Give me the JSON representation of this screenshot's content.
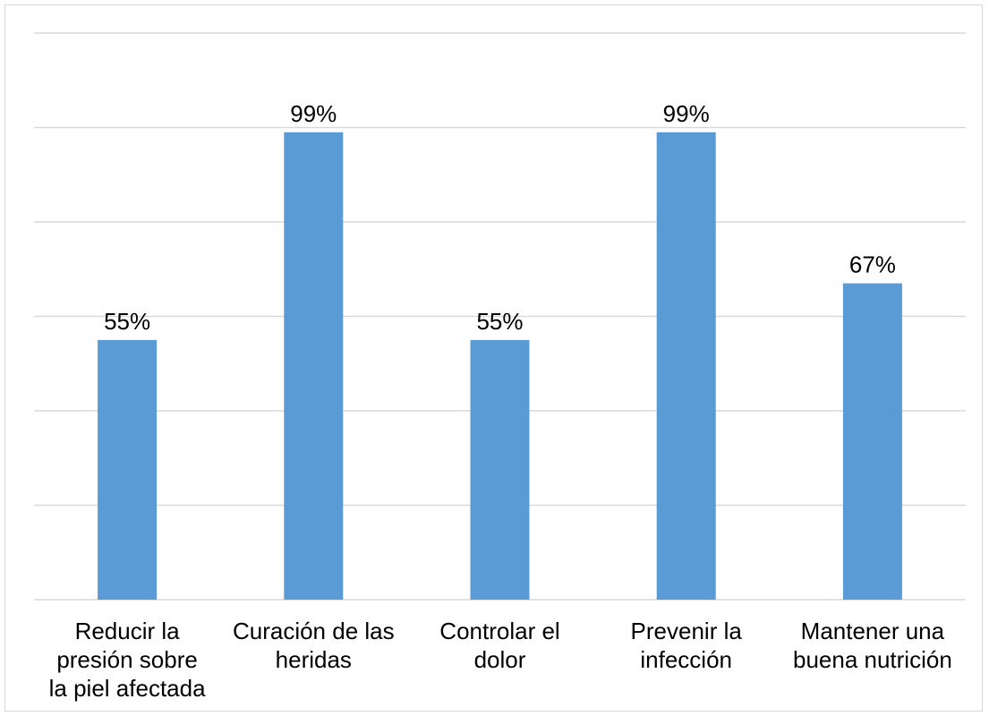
{
  "chart_data": {
    "type": "bar",
    "categories": [
      [
        "Reducir la",
        "presión sobre",
        "la piel afectada"
      ],
      [
        "Curación de las",
        "heridas"
      ],
      [
        "Controlar el",
        "dolor"
      ],
      [
        "Prevenir la",
        "infección"
      ],
      [
        "Mantener una",
        "buena nutrición"
      ]
    ],
    "values": [
      55,
      99,
      55,
      99,
      67
    ],
    "data_labels": [
      "55%",
      "99%",
      "55%",
      "99%",
      "67%"
    ],
    "ylim": [
      0,
      120
    ],
    "y_gridlines": [
      0,
      20,
      40,
      60,
      80,
      100,
      120
    ],
    "grid": true,
    "legend": "none",
    "bar_color": "#5b9bd5",
    "grid_color": "#d9d9d9"
  }
}
